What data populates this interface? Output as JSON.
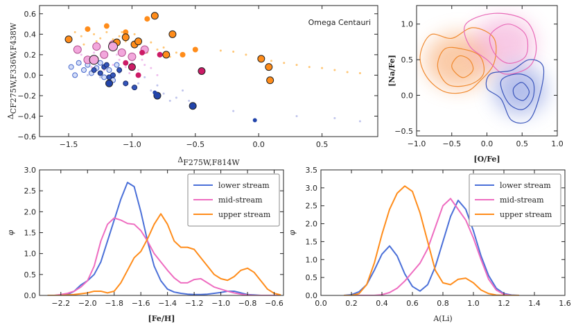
{
  "chart_data": [
    {
      "type": "scatter",
      "annotation": "Omega Centauri",
      "xlabel": "Δ",
      "xlabel_sub": "F275W,F814W",
      "ylabel": "Δ",
      "ylabel_sub": "CF275W,F336W,F438W",
      "xlim": [
        -1.73,
        0.94
      ],
      "ylim": [
        -0.6,
        0.68
      ],
      "xticks": [
        {
          "value": -1.5,
          "label": "−1.5"
        },
        {
          "value": -1.0,
          "label": "−1.0"
        },
        {
          "value": -0.5,
          "label": "−0.5"
        },
        {
          "value": 0,
          "label": "0.0"
        },
        0.5
      ],
      "yticks": [
        {
          "value": -0.6,
          "label": "−0.6"
        },
        {
          "value": -0.4,
          "label": "−0.4"
        },
        {
          "value": -0.2,
          "label": "−0.2"
        },
        {
          "value": 0,
          "label": "0.0"
        },
        0.2,
        0.4,
        0.6
      ],
      "series": [
        {
          "color": "#ffb347",
          "size": 1.5,
          "x": [
            -1.45,
            -1.4,
            -1.35,
            -1.3,
            -1.25,
            -1.2,
            -1.15,
            -1.1,
            -1.05,
            -1.0,
            -0.95,
            -0.9,
            -0.85,
            -0.8,
            -0.75,
            -1.38,
            -1.28,
            -1.18,
            -1.08,
            -0.98,
            -0.88,
            -0.78,
            -0.7,
            -0.65,
            -0.1,
            0.0,
            0.1,
            0.2,
            0.3,
            0.4,
            0.5,
            0.6,
            0.7,
            0.8,
            -0.2,
            -0.3
          ],
          "values": [
            0.42,
            0.38,
            0.45,
            0.4,
            0.36,
            0.42,
            0.35,
            0.38,
            0.33,
            0.3,
            0.35,
            0.28,
            0.32,
            0.25,
            0.27,
            0.3,
            0.33,
            0.28,
            0.42,
            0.4,
            0.22,
            0.2,
            0.18,
            0.22,
            0.2,
            0.17,
            0.14,
            0.12,
            0.1,
            0.08,
            0.07,
            0.05,
            0.03,
            0.02,
            0.23,
            0.24
          ]
        },
        {
          "color": "#e9a6e6",
          "size": 1.5,
          "x": [
            -1.4,
            -1.35,
            -1.3,
            -1.25,
            -1.2,
            -1.15,
            -1.1,
            -1.05,
            -1.0,
            -0.95,
            -0.9,
            -1.32,
            -1.22,
            -1.12,
            -1.02,
            -0.92,
            -0.85,
            -0.8
          ],
          "values": [
            0.2,
            0.15,
            0.22,
            0.12,
            0.18,
            0.1,
            0.15,
            0.08,
            0.12,
            0.05,
            0.1,
            0.08,
            0.05,
            0.2,
            0.02,
            0.15,
            0.07,
            0.0
          ]
        },
        {
          "color": "#aab0e6",
          "size": 1.5,
          "x": [
            -1.35,
            -1.25,
            -1.15,
            -1.05,
            -0.95,
            -0.85,
            -0.75,
            -0.65,
            -0.55,
            -1.1,
            -1.0,
            -0.9,
            -0.8,
            -0.7,
            -0.6,
            -0.5,
            -0.2,
            0.3,
            0.6,
            0.8
          ],
          "values": [
            0.0,
            -0.02,
            -0.05,
            -0.1,
            -0.08,
            -0.15,
            -0.18,
            -0.22,
            -0.25,
            0.02,
            -0.12,
            -0.02,
            -0.1,
            -0.25,
            -0.15,
            -0.3,
            -0.35,
            -0.4,
            -0.42,
            -0.45
          ]
        },
        {
          "color": "#d5def7",
          "edgecolor": "#4466cc",
          "size": 3.5,
          "x": [
            -1.48,
            -1.45,
            -1.42,
            -1.38,
            -1.35,
            -1.32,
            -1.28,
            -1.25,
            -1.22,
            -1.18,
            -1.15,
            -1.12
          ],
          "values": [
            0.08,
            0.0,
            0.12,
            0.05,
            0.1,
            0.02,
            0.07,
            0.12,
            -0.02,
            0.05,
            -0.05,
            0.1
          ]
        },
        {
          "color": "#3355bb",
          "edgecolor": "#1a2a66",
          "size": 3.5,
          "x": [
            -1.3,
            -1.25,
            -1.22,
            -1.18,
            -1.15,
            -1.1,
            -1.05,
            -1.2,
            -0.98
          ],
          "values": [
            0.05,
            0.02,
            0.08,
            -0.02,
            0.0,
            0.05,
            -0.08,
            0.1,
            -0.12
          ]
        },
        {
          "color": "#f2a7dc",
          "edgecolor": "#b0508e",
          "size": 5.5,
          "x": [
            -1.43,
            -1.35,
            -1.28,
            -1.22,
            -1.15,
            -1.08,
            -1.0,
            -0.9
          ],
          "values": [
            0.25,
            0.15,
            0.28,
            0.2,
            0.3,
            0.22,
            0.18,
            0.25
          ]
        },
        {
          "color": "#ff8c1a",
          "size": 4,
          "x": [
            -1.35,
            -1.2,
            -1.05,
            -0.88,
            -0.6,
            -0.5
          ],
          "values": [
            0.45,
            0.48,
            0.42,
            0.55,
            0.2,
            0.25
          ]
        },
        {
          "color": "#cc1a66",
          "size": 4,
          "x": [
            -1.05,
            -0.95,
            -0.78,
            -0.92
          ],
          "values": [
            0.12,
            0.0,
            0.2,
            0.22
          ]
        },
        {
          "color": "#ff8c1a",
          "edgecolor": "#222222",
          "size": 5,
          "x": [
            -1.5,
            -1.12,
            -1.05,
            -0.98,
            -0.95,
            -0.82,
            -0.73,
            -0.68,
            0.02,
            0.08,
            0.09
          ],
          "values": [
            0.35,
            0.32,
            0.37,
            0.3,
            0.33,
            0.58,
            0.2,
            0.4,
            0.16,
            0.08,
            -0.05
          ]
        },
        {
          "color": "#2244aa",
          "edgecolor": "#222222",
          "size": 5,
          "x": [
            -1.18,
            -0.8,
            -0.52
          ],
          "values": [
            -0.08,
            -0.2,
            -0.3
          ]
        },
        {
          "color": "#cc1a66",
          "edgecolor": "#222222",
          "size": 5,
          "x": [
            -1.0,
            -0.45
          ],
          "values": [
            0.08,
            0.04
          ]
        },
        {
          "color": "#f2a7dc",
          "edgecolor": "#222222",
          "size": 6.5,
          "x": [
            -1.3,
            -1.15
          ],
          "values": [
            0.15,
            0.28
          ]
        },
        {
          "color": "#2244aa",
          "size": 3,
          "x": [
            -0.03,
            -0.82
          ],
          "values": [
            -0.44,
            -0.17
          ]
        }
      ]
    },
    {
      "type": "contour",
      "xlabel": "[O/Fe]",
      "ylabel": "[Na/Fe]",
      "xlim": [
        -1.0,
        1.0
      ],
      "ylim": [
        -0.57,
        1.26
      ],
      "xticks": [
        {
          "value": -1.0,
          "label": "−1.0"
        },
        {
          "value": -0.5,
          "label": "−0.5"
        },
        {
          "value": 0,
          "label": "0.0"
        },
        0.5,
        {
          "value": 1.0,
          "label": "1.0"
        }
      ],
      "yticks": [
        {
          "value": -0.5,
          "label": "−0.5"
        },
        {
          "value": 0,
          "label": "0.0"
        },
        0.5,
        {
          "value": 1.0,
          "label": "1.0"
        }
      ],
      "series": [
        {
          "color": "#f08a30",
          "levels": [
            {
              "x": [
                -0.95,
                -0.8,
                -0.5,
                -0.2,
                0.1,
                0.1,
                -0.1,
                -0.3,
                -0.6,
                -0.85
              ],
              "values": [
                0.55,
                0.85,
                0.8,
                0.95,
                0.8,
                0.45,
                0.2,
                0.05,
                0.05,
                0.25
              ]
            },
            {
              "x": [
                -0.7,
                -0.6,
                -0.35,
                -0.1,
                -0.05,
                -0.25,
                -0.55
              ],
              "values": [
                0.4,
                0.65,
                0.65,
                0.55,
                0.3,
                0.15,
                0.15
              ]
            },
            {
              "x": [
                -0.5,
                -0.4,
                -0.25,
                -0.2,
                -0.35
              ],
              "values": [
                0.4,
                0.55,
                0.5,
                0.35,
                0.25
              ]
            }
          ]
        },
        {
          "color": "#e86ab8",
          "levels": [
            {
              "x": [
                -0.3,
                0.1,
                0.55,
                0.7,
                0.6,
                0.25,
                0.0,
                -0.25
              ],
              "values": [
                1.0,
                1.15,
                1.05,
                0.7,
                0.4,
                0.3,
                0.5,
                0.7
              ]
            },
            {
              "x": [
                0.05,
                0.3,
                0.55,
                0.55,
                0.3,
                0.1
              ],
              "values": [
                0.85,
                1.0,
                0.85,
                0.55,
                0.45,
                0.6
              ]
            }
          ]
        },
        {
          "color": "#3a55bb",
          "levels": [
            {
              "x": [
                0.05,
                0.35,
                0.6,
                0.8,
                0.75,
                0.6,
                0.35,
                0.2,
                0.0
              ],
              "values": [
                0.3,
                0.35,
                0.5,
                0.4,
                0.0,
                -0.35,
                -0.35,
                -0.05,
                0.1
              ]
            },
            {
              "x": [
                0.2,
                0.45,
                0.65,
                0.65,
                0.5,
                0.3
              ],
              "values": [
                0.2,
                0.3,
                0.2,
                -0.05,
                -0.2,
                -0.1
              ]
            },
            {
              "x": [
                0.38,
                0.5,
                0.6,
                0.52,
                0.4
              ],
              "values": [
                0.1,
                0.18,
                0.05,
                -0.07,
                -0.02
              ]
            }
          ]
        }
      ]
    },
    {
      "type": "line",
      "xlabel": "[Fe/H]",
      "ylabel": "φ",
      "legend": "upper right",
      "xlim": [
        -2.36,
        -0.53
      ],
      "ylim": [
        0,
        3.0
      ],
      "xticks": [
        {
          "value": -2.2,
          "label": "−2.2"
        },
        {
          "value": -2.0,
          "label": "−2.0"
        },
        {
          "value": -1.8,
          "label": "−1.8"
        },
        {
          "value": -1.6,
          "label": "−1.6"
        },
        {
          "value": -1.4,
          "label": "−1.4"
        },
        {
          "value": -1.2,
          "label": "−1.2"
        },
        {
          "value": -1.0,
          "label": "−1.0"
        },
        {
          "value": -0.8,
          "label": "−0.8"
        },
        {
          "value": -0.6,
          "label": "−0.6"
        }
      ],
      "yticks": [
        {
          "value": 0,
          "label": "0.0"
        },
        0.5,
        {
          "value": 1,
          "label": "1.0"
        },
        1.5,
        {
          "value": 2,
          "label": "2.0"
        },
        2.5,
        {
          "value": 3,
          "label": "3.0"
        }
      ],
      "x": [
        -2.3,
        -2.25,
        -2.2,
        -2.15,
        -2.1,
        -2.05,
        -2.0,
        -1.95,
        -1.9,
        -1.85,
        -1.8,
        -1.75,
        -1.7,
        -1.65,
        -1.6,
        -1.55,
        -1.5,
        -1.45,
        -1.4,
        -1.35,
        -1.3,
        -1.25,
        -1.2,
        -1.15,
        -1.1,
        -1.05,
        -1.0,
        -0.95,
        -0.9,
        -0.85,
        -0.8,
        -0.75,
        -0.7,
        -0.65,
        -0.6,
        -0.55
      ],
      "series": [
        {
          "name": "lower stream",
          "color": "#4a6fd8",
          "values": [
            0,
            0,
            0,
            0.02,
            0.1,
            0.25,
            0.35,
            0.5,
            0.8,
            1.3,
            1.8,
            2.3,
            2.7,
            2.6,
            2.0,
            1.3,
            0.7,
            0.35,
            0.15,
            0.08,
            0.05,
            0.03,
            0.02,
            0.02,
            0.03,
            0.05,
            0.07,
            0.1,
            0.1,
            0.06,
            0.02,
            0.01,
            0,
            0,
            0,
            0
          ]
        },
        {
          "name": "mid-stream",
          "color": "#ee6cc0",
          "values": [
            0,
            0,
            0.02,
            0.05,
            0.1,
            0.2,
            0.35,
            0.7,
            1.3,
            1.7,
            1.85,
            1.8,
            1.72,
            1.7,
            1.55,
            1.3,
            1.0,
            0.8,
            0.6,
            0.42,
            0.3,
            0.3,
            0.38,
            0.4,
            0.3,
            0.2,
            0.15,
            0.1,
            0.06,
            0.03,
            0.01,
            0,
            0,
            0,
            0,
            0
          ]
        },
        {
          "name": "upper stream",
          "color": "#ff8c1a",
          "values": [
            0,
            0,
            0,
            0.01,
            0.02,
            0.04,
            0.06,
            0.1,
            0.1,
            0.06,
            0.1,
            0.3,
            0.6,
            0.9,
            1.05,
            1.35,
            1.7,
            1.95,
            1.7,
            1.3,
            1.15,
            1.15,
            1.1,
            0.9,
            0.7,
            0.5,
            0.4,
            0.36,
            0.45,
            0.6,
            0.65,
            0.55,
            0.35,
            0.15,
            0.05,
            0.01
          ]
        }
      ]
    },
    {
      "type": "line",
      "xlabel": "A(Li)",
      "ylabel": "φ",
      "legend": "upper right",
      "xlim": [
        0,
        1.6
      ],
      "ylim": [
        0,
        3.5
      ],
      "xticks": [
        {
          "value": 0,
          "label": "0.0"
        },
        0.2,
        0.4,
        0.6,
        0.8,
        {
          "value": 1,
          "label": "1.0"
        },
        1.2,
        1.4,
        1.6
      ],
      "yticks": [
        {
          "value": 0,
          "label": "0.0"
        },
        0.5,
        {
          "value": 1,
          "label": "1.0"
        },
        1.5,
        {
          "value": 2,
          "label": "2.0"
        },
        2.5,
        {
          "value": 3,
          "label": "3.0"
        },
        3.5
      ],
      "x": [
        0.15,
        0.2,
        0.25,
        0.3,
        0.35,
        0.4,
        0.45,
        0.5,
        0.55,
        0.6,
        0.65,
        0.7,
        0.75,
        0.8,
        0.85,
        0.9,
        0.95,
        1.0,
        1.05,
        1.1,
        1.15,
        1.2,
        1.25,
        1.3
      ],
      "series": [
        {
          "name": "lower stream",
          "color": "#4a6fd8",
          "values": [
            0,
            0.02,
            0.1,
            0.3,
            0.7,
            1.15,
            1.38,
            1.1,
            0.6,
            0.25,
            0.12,
            0.3,
            0.8,
            1.5,
            2.2,
            2.65,
            2.4,
            1.8,
            1.1,
            0.55,
            0.2,
            0.05,
            0.01,
            0
          ]
        },
        {
          "name": "mid-stream",
          "color": "#ee6cc0",
          "values": [
            0,
            0,
            0,
            0,
            0,
            0.02,
            0.08,
            0.2,
            0.4,
            0.65,
            0.9,
            1.3,
            1.9,
            2.5,
            2.7,
            2.4,
            2.1,
            1.6,
            1.0,
            0.45,
            0.15,
            0.03,
            0,
            0
          ]
        },
        {
          "name": "upper stream",
          "color": "#ff8c1a",
          "values": [
            0,
            0,
            0.05,
            0.3,
            0.9,
            1.7,
            2.4,
            2.85,
            3.05,
            2.9,
            2.3,
            1.5,
            0.7,
            0.35,
            0.3,
            0.45,
            0.48,
            0.35,
            0.15,
            0.05,
            0.01,
            0,
            0,
            0
          ]
        }
      ]
    }
  ]
}
